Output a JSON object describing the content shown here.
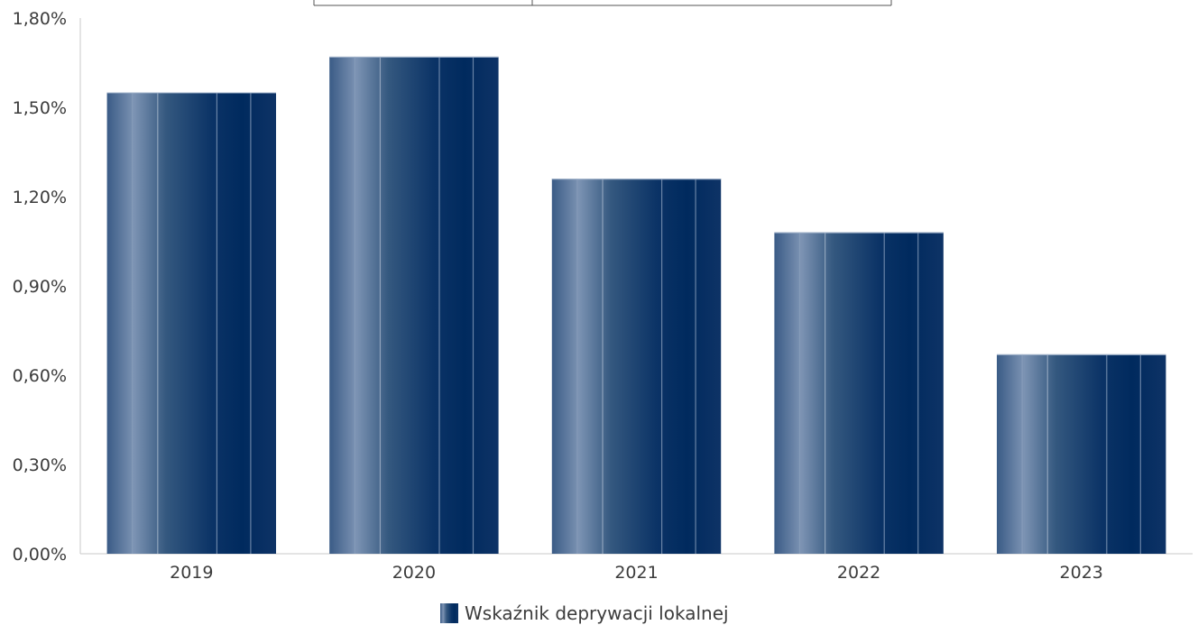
{
  "chart_data": {
    "type": "bar",
    "categories": [
      "2019",
      "2020",
      "2021",
      "2022",
      "2023"
    ],
    "series": [
      {
        "name": "Wskaźnik deprywacji lokalnej",
        "values": [
          1.55,
          1.67,
          1.26,
          1.08,
          0.67
        ]
      }
    ],
    "value_unit": "%",
    "ylim": [
      0,
      1.8
    ],
    "yticks": [
      "0,00%",
      "0,30%",
      "0,60%",
      "0,90%",
      "1,20%",
      "1,50%",
      "1,80%"
    ],
    "ytick_values": [
      0,
      0.3,
      0.6,
      0.9,
      1.2,
      1.5,
      1.8
    ],
    "grid": false,
    "legend_position": "bottom",
    "bar_color": "#0b2c5c",
    "bar_gradient_colors": [
      "#3a5b86",
      "#7c93b3",
      "#23477a",
      "#002a5e",
      "#0e3366"
    ]
  }
}
